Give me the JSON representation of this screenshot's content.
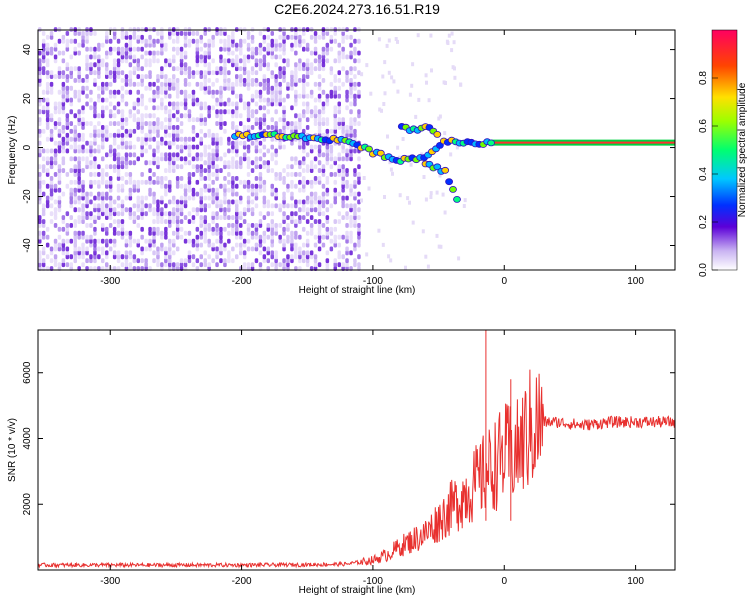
{
  "chart_data": [
    {
      "type": "heatmap",
      "title": "C2E6.2024.273.16.51.R19",
      "xlabel": "Height of straight line (km)",
      "ylabel": "Frequency (Hz)",
      "xlim": [
        -355,
        130
      ],
      "ylim": [
        -50,
        48
      ],
      "xticks": [
        -300,
        -200,
        -100,
        0,
        100
      ],
      "yticks": [
        -40,
        -20,
        0,
        20,
        40
      ],
      "colorbar": {
        "label": "Normalized spectral amplitude",
        "ticks": [
          0.0,
          0.2,
          0.4,
          0.6,
          0.8
        ],
        "range": [
          0,
          1
        ]
      },
      "features": [
        {
          "name": "noise-region",
          "x_range": [
            -355,
            -110
          ],
          "y_range": [
            -50,
            48
          ]
        },
        {
          "name": "signal-track",
          "points": [
            [
              -205,
              5
            ],
            [
              -175,
              5
            ],
            [
              -150,
              4
            ],
            [
              -120,
              3
            ],
            [
              -100,
              -2
            ],
            [
              -80,
              -5
            ],
            [
              -60,
              -4
            ],
            [
              -45,
              3
            ],
            [
              -30,
              2
            ],
            [
              -10,
              2
            ],
            [
              20,
              2
            ],
            [
              100,
              2
            ],
            [
              130,
              2
            ]
          ]
        },
        {
          "name": "upper-branch",
          "points": [
            [
              -78,
              8
            ],
            [
              -70,
              7
            ],
            [
              -60,
              9
            ],
            [
              -50,
              5
            ]
          ]
        },
        {
          "name": "lower-branch",
          "points": [
            [
              -60,
              -6
            ],
            [
              -45,
              -10
            ],
            [
              -35,
              -22
            ]
          ]
        }
      ]
    },
    {
      "type": "line",
      "xlabel": "Height of straight line (km)",
      "ylabel": "SNR (10 * v/v)",
      "xlim": [
        -355,
        130
      ],
      "ylim": [
        0,
        7300
      ],
      "xticks": [
        -300,
        -200,
        -100,
        0,
        100
      ],
      "yticks": [
        2000,
        4000,
        6000
      ],
      "series": [
        {
          "color": "#e8312f",
          "x": [
            -355,
            -300,
            -250,
            -200,
            -150,
            -120,
            -100,
            -90,
            -80,
            -70,
            -60,
            -50,
            -40,
            -30,
            -20,
            -14,
            -10,
            -5,
            0,
            5,
            10,
            20,
            30,
            40,
            60,
            80,
            100,
            120,
            130
          ],
          "y": [
            150,
            150,
            150,
            150,
            160,
            180,
            300,
            450,
            700,
            900,
            1100,
            1500,
            1900,
            2300,
            2700,
            7300,
            3100,
            3300,
            3500,
            5800,
            3600,
            4300,
            4500,
            4500,
            4400,
            4500,
            4500,
            4500,
            4500
          ]
        }
      ]
    }
  ]
}
